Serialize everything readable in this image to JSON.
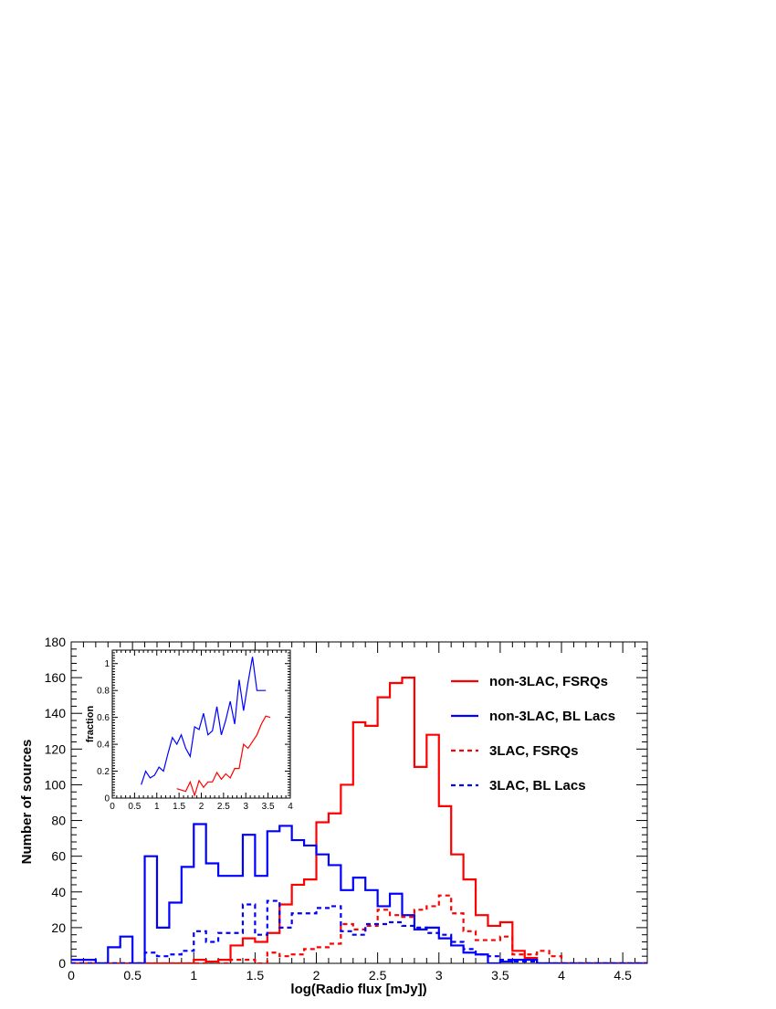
{
  "chart_data": {
    "type": "histogram",
    "xlabel": "log(Radio flux [mJy])",
    "ylabel": "Number of sources",
    "xlim": [
      0,
      4.7
    ],
    "ylim": [
      0,
      180
    ],
    "xticks": [
      0,
      0.5,
      1,
      1.5,
      2,
      2.5,
      3,
      3.5,
      4,
      4.5
    ],
    "xtick_labels": [
      "0",
      "0.5",
      "1",
      "1.5",
      "2",
      "2.5",
      "3",
      "3.5",
      "4",
      "4.5"
    ],
    "yticks": [
      0,
      20,
      40,
      60,
      80,
      100,
      120,
      140,
      160,
      180
    ],
    "ytick_labels": [
      "0",
      "20",
      "40",
      "60",
      "80",
      "100",
      "120",
      "140",
      "160",
      "180"
    ],
    "bin_width": 0.1,
    "bin_start": 0,
    "legend_position": "top-right",
    "series": [
      {
        "name": "non-3LAC, FSRQs",
        "color": "#ff0000",
        "style": "solid",
        "values": [
          0,
          0,
          0,
          0,
          0,
          0,
          0,
          0,
          0,
          0,
          2,
          1,
          2,
          10,
          14,
          12,
          17,
          33,
          44,
          47,
          79,
          84,
          100,
          135,
          133,
          149,
          157,
          160,
          110,
          128,
          88,
          61,
          47,
          27,
          21,
          23,
          7,
          3,
          0,
          0,
          0,
          0,
          0,
          0,
          0,
          0,
          0
        ]
      },
      {
        "name": "non-3LAC, BL Lacs",
        "color": "#0000ff",
        "style": "solid",
        "values": [
          2,
          2,
          0,
          9,
          15,
          0,
          60,
          20,
          34,
          54,
          78,
          56,
          49,
          49,
          72,
          49,
          74,
          77,
          69,
          66,
          61,
          55,
          41,
          48,
          41,
          32,
          39,
          27,
          19,
          20,
          14,
          10,
          6,
          5,
          0,
          1,
          2,
          2,
          0,
          0,
          0,
          0,
          0,
          0,
          0,
          0,
          0
        ]
      },
      {
        "name": "3LAC, FSRQs",
        "color": "#ff0000",
        "style": "dashed",
        "values": [
          0,
          0,
          0,
          0,
          0,
          0,
          0,
          0,
          0,
          0,
          0,
          1,
          0,
          2,
          2,
          0,
          6,
          4,
          5,
          8,
          9,
          11,
          22,
          19,
          21,
          30,
          27,
          26,
          30,
          32,
          38,
          28,
          18,
          13,
          13,
          15,
          5,
          5,
          7,
          4,
          0,
          0,
          0,
          0,
          0,
          0,
          0
        ]
      },
      {
        "name": "3LAC, BL Lacs",
        "color": "#0000ff",
        "style": "dashed",
        "values": [
          0,
          0,
          0,
          0,
          0,
          0,
          6,
          4,
          5,
          7,
          18,
          12,
          17,
          17,
          33,
          16,
          35,
          20,
          28,
          28,
          31,
          32,
          18,
          16,
          22,
          22,
          23,
          21,
          20,
          17,
          16,
          12,
          8,
          5,
          4,
          2,
          1,
          1,
          0,
          0,
          0,
          0,
          0,
          0,
          0,
          0,
          0
        ]
      }
    ],
    "inset": {
      "ylabel": "fraction",
      "xlim": [
        0,
        4
      ],
      "ylim": [
        0,
        1.1
      ],
      "xticks": [
        0,
        0.5,
        1,
        1.5,
        2,
        2.5,
        3,
        3.5,
        4
      ],
      "xtick_labels": [
        "0",
        "0.5",
        "1",
        "1.5",
        "2",
        "2.5",
        "3",
        "3.5",
        "4"
      ],
      "yticks": [
        0,
        0.2,
        0.4,
        0.6,
        0.8,
        1
      ],
      "ytick_labels": [
        "0",
        "0.2",
        "0.4",
        "0.6",
        "0.8",
        "1"
      ],
      "series": [
        {
          "color": "#0000ff",
          "x": [
            0.65,
            0.75,
            0.85,
            0.95,
            1.05,
            1.15,
            1.25,
            1.35,
            1.45,
            1.55,
            1.65,
            1.75,
            1.85,
            1.95,
            2.05,
            2.15,
            2.25,
            2.35,
            2.45,
            2.55,
            2.65,
            2.75,
            2.85,
            2.95,
            3.05,
            3.15,
            3.25,
            3.35,
            3.45
          ],
          "y": [
            0.1,
            0.2,
            0.15,
            0.17,
            0.23,
            0.2,
            0.33,
            0.45,
            0.4,
            0.47,
            0.37,
            0.31,
            0.53,
            0.51,
            0.63,
            0.47,
            0.5,
            0.68,
            0.47,
            0.58,
            0.72,
            0.55,
            0.88,
            0.65,
            0.86,
            1.05,
            0.8,
            0.8,
            0.8
          ]
        },
        {
          "color": "#ff0000",
          "x": [
            1.45,
            1.55,
            1.65,
            1.75,
            1.85,
            1.95,
            2.05,
            2.15,
            2.25,
            2.35,
            2.45,
            2.55,
            2.65,
            2.75,
            2.85,
            2.95,
            3.05,
            3.15,
            3.25,
            3.35,
            3.45,
            3.55
          ],
          "y": [
            0.07,
            0.06,
            0.05,
            0.12,
            0.02,
            0.13,
            0.08,
            0.12,
            0.12,
            0.19,
            0.14,
            0.18,
            0.15,
            0.22,
            0.22,
            0.4,
            0.37,
            0.42,
            0.47,
            0.55,
            0.61,
            0.6
          ]
        }
      ]
    }
  }
}
